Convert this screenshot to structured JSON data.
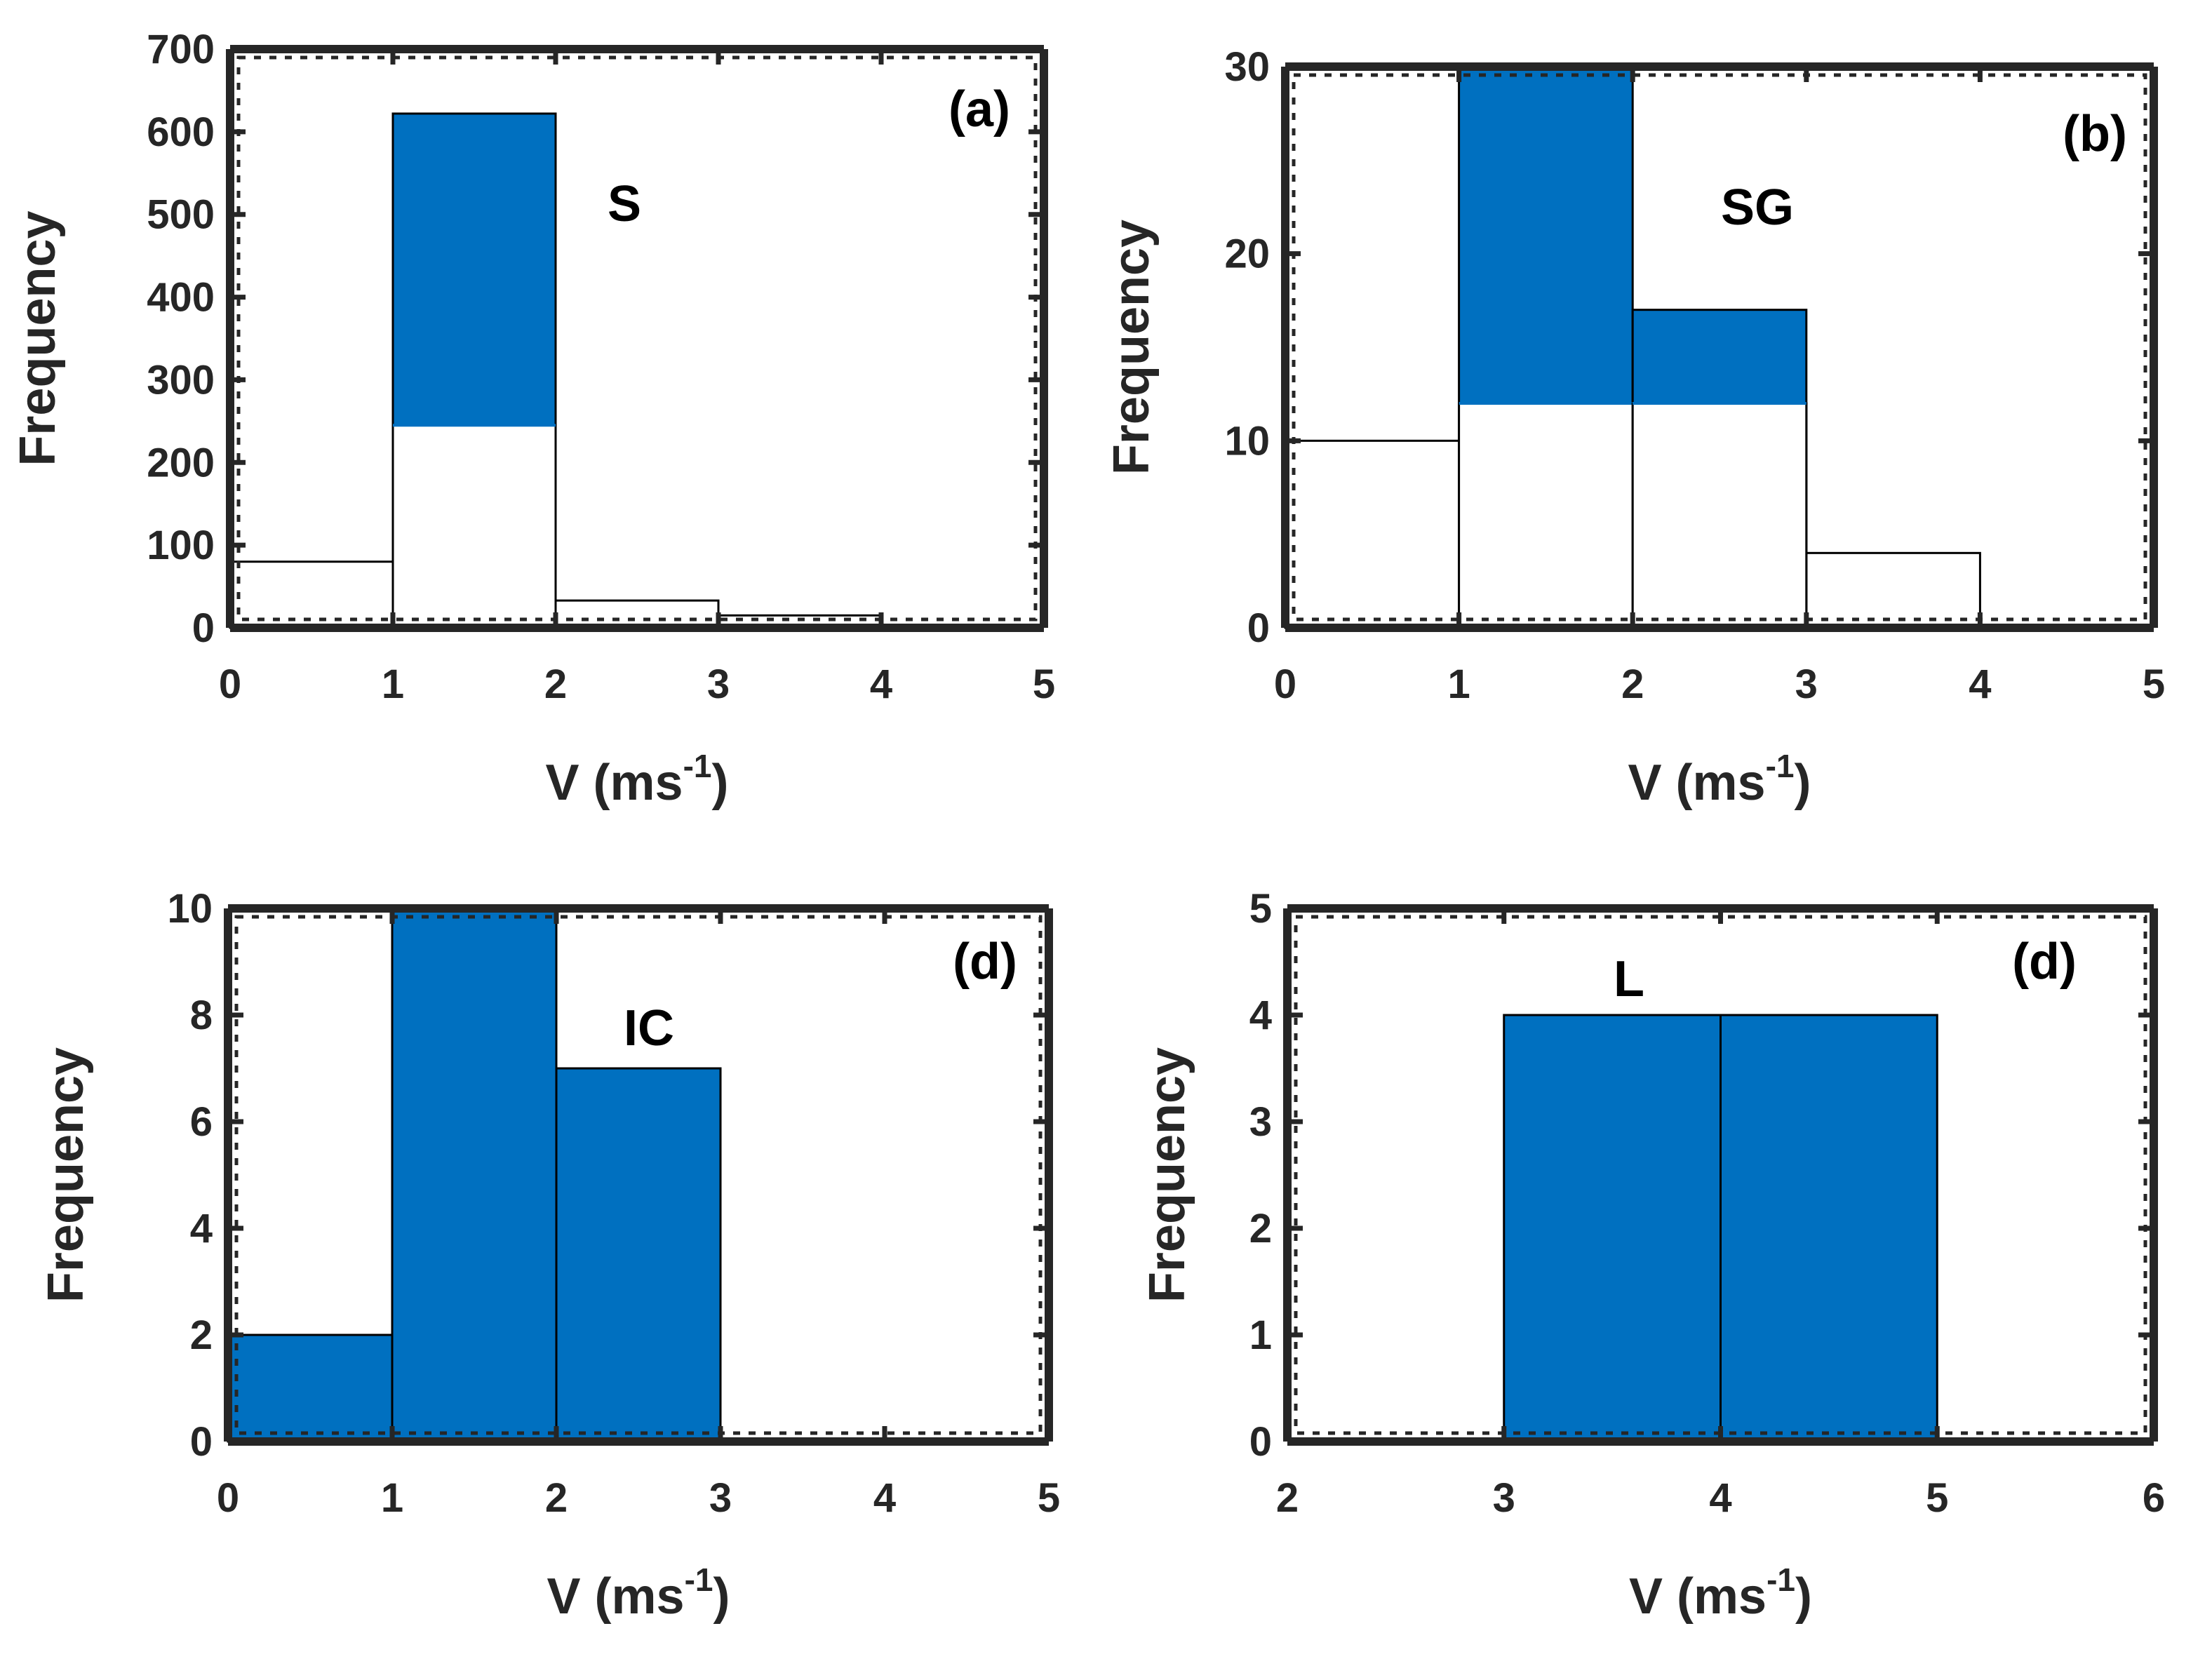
{
  "colors": {
    "bar_fill": "#0070C0",
    "bar_edge": "#000000",
    "axis": "#262626",
    "white_fill": "#FFFFFF"
  },
  "chart_data": [
    {
      "id": "a",
      "type": "bar",
      "panel_label": "(a)",
      "series_label": "S",
      "xlabel": "V (ms",
      "xlabel_sup": "-1",
      "xlabel_close": ")",
      "ylabel": "Frequency",
      "xlim": [
        0,
        5
      ],
      "ylim": [
        0,
        700
      ],
      "xticks": [
        0,
        1,
        2,
        3,
        4,
        5
      ],
      "yticks": [
        0,
        100,
        200,
        300,
        400,
        500,
        600,
        700
      ],
      "bin_edges": [
        0,
        1,
        2,
        3,
        4
      ],
      "series": [
        {
          "name": "outline",
          "style": "white",
          "values": [
            80,
            245,
            33,
            15
          ]
        },
        {
          "name": "filled",
          "style": "blue",
          "values": [
            0,
            622,
            0,
            0
          ]
        }
      ]
    },
    {
      "id": "b",
      "type": "bar",
      "panel_label": "(b)",
      "series_label": "SG",
      "xlabel": "V (ms",
      "xlabel_sup": "-1",
      "xlabel_close": ")",
      "ylabel": "Frequency",
      "xlim": [
        0,
        5
      ],
      "ylim": [
        0,
        30
      ],
      "xticks": [
        0,
        1,
        2,
        3,
        4,
        5
      ],
      "yticks": [
        0,
        10,
        20,
        30
      ],
      "bin_edges": [
        0,
        1,
        2,
        3,
        4
      ],
      "series": [
        {
          "name": "outline",
          "style": "white",
          "values": [
            10,
            12,
            12,
            4
          ]
        },
        {
          "name": "filled",
          "style": "blue",
          "values": [
            0,
            30,
            17,
            0
          ]
        }
      ]
    },
    {
      "id": "c",
      "type": "bar",
      "panel_label": "(d)",
      "series_label": "IC",
      "xlabel": "V (ms",
      "xlabel_sup": "-1",
      "xlabel_close": ")",
      "ylabel": "Frequency",
      "xlim": [
        0,
        5
      ],
      "ylim": [
        0,
        10
      ],
      "xticks": [
        0,
        1,
        2,
        3,
        4,
        5
      ],
      "yticks": [
        0,
        2,
        4,
        6,
        8,
        10
      ],
      "bin_edges": [
        0,
        1,
        2,
        3
      ],
      "series": [
        {
          "name": "filled",
          "style": "blue",
          "values": [
            2,
            10,
            7
          ]
        }
      ]
    },
    {
      "id": "d",
      "type": "bar",
      "panel_label": "(d)",
      "series_label": "L",
      "xlabel": "V (ms",
      "xlabel_sup": "-1",
      "xlabel_close": ")",
      "ylabel": "Frequency",
      "xlim": [
        2,
        6
      ],
      "ylim": [
        0,
        5
      ],
      "xticks": [
        2,
        3,
        4,
        5,
        6
      ],
      "yticks": [
        0,
        1,
        2,
        3,
        4,
        5
      ],
      "bin_edges": [
        3,
        4,
        5
      ],
      "series": [
        {
          "name": "filled",
          "style": "blue",
          "values": [
            4,
            4
          ]
        }
      ]
    }
  ]
}
